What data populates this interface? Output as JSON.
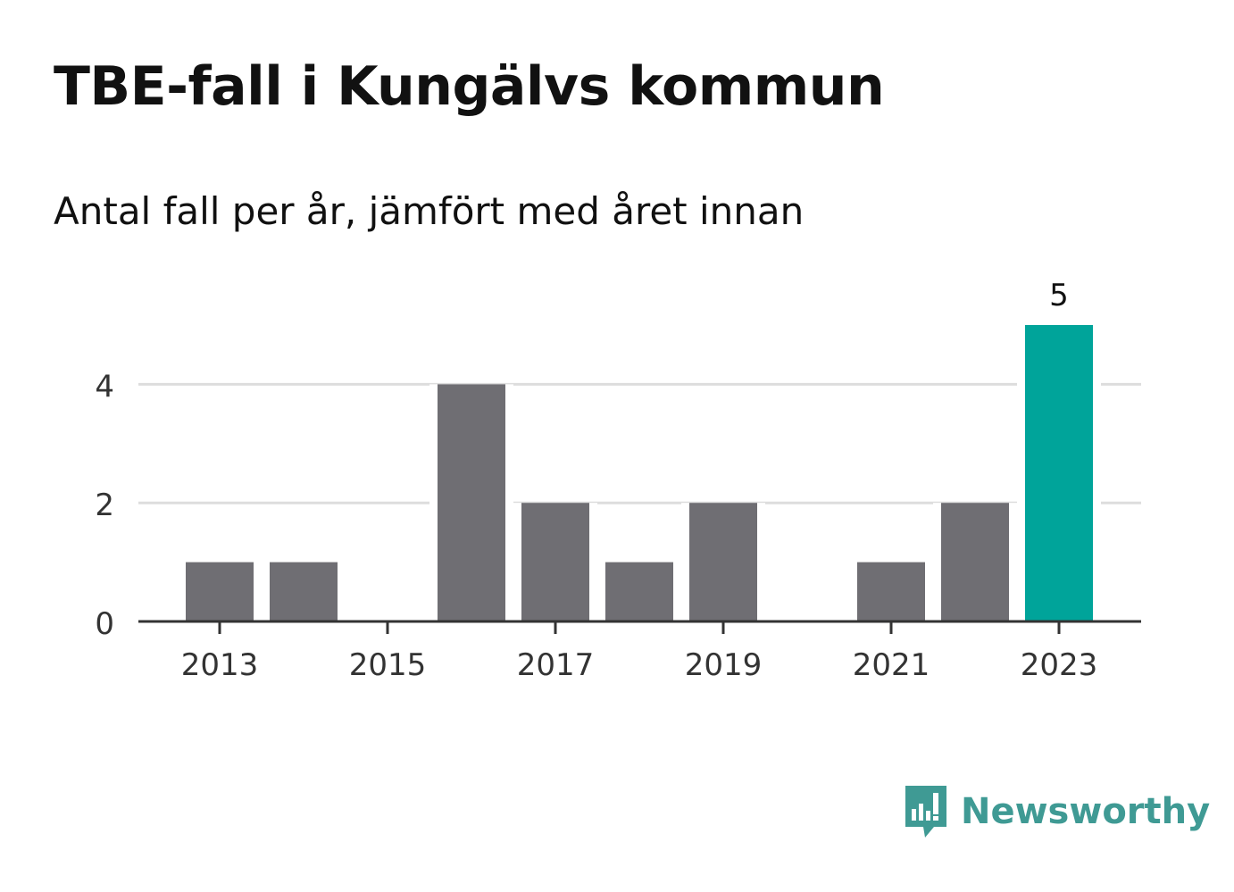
{
  "title": "TBE-fall i Kungälvs kommun",
  "subtitle": "Antal fall per år, jämfört med året innan",
  "brand": {
    "name": "Newsworthy",
    "icon": "newsworthy-logo-icon",
    "color": "#3f9a94"
  },
  "chart_data": {
    "type": "bar",
    "categories": [
      "2013",
      "2014",
      "2015",
      "2016",
      "2017",
      "2018",
      "2019",
      "2020",
      "2021",
      "2022",
      "2023"
    ],
    "values": [
      1,
      1,
      0,
      4,
      2,
      1,
      2,
      0,
      1,
      2,
      5
    ],
    "x_tick_labels": [
      "2013",
      "2015",
      "2017",
      "2019",
      "2021",
      "2023"
    ],
    "y_ticks": [
      0,
      2,
      4
    ],
    "ylim": [
      0,
      5
    ],
    "grid": true,
    "highlight": {
      "category": "2023",
      "label": "5",
      "color": "#00a49a"
    },
    "colors": {
      "bar": "#6f6e73",
      "highlight": "#00a49a",
      "grid": "#dddddd",
      "axis": "#333333"
    },
    "xlabel": "",
    "ylabel": ""
  }
}
